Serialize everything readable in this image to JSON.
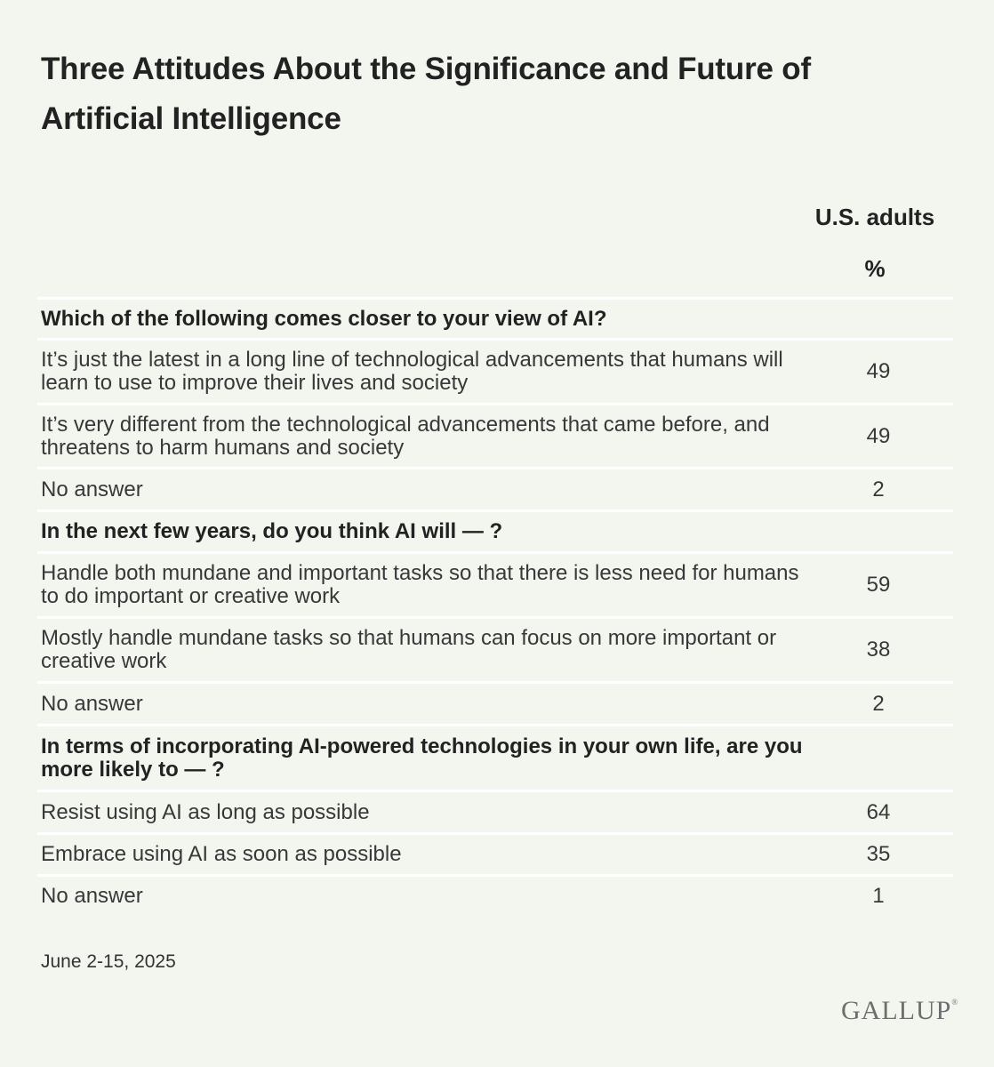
{
  "chart_data": {
    "type": "table",
    "title": "Three Attitudes About the Significance and Future of Artificial Intelligence",
    "column_group": "U.S. adults",
    "column_unit": "%",
    "sections": [
      {
        "question": "Which of the following comes closer to your view of AI?",
        "rows": [
          {
            "label": "It’s just the latest in a long line of technological advancements that humans will learn to use to improve their lives and society",
            "value": 49
          },
          {
            "label": "It’s very different from the technological advancements that came before, and threatens to harm humans and society",
            "value": 49
          },
          {
            "label": "No answer",
            "value": 2
          }
        ]
      },
      {
        "question": "In the next few years, do you think AI will — ?",
        "rows": [
          {
            "label": "Handle both mundane and important tasks so that there is less need for humans to do important or creative work",
            "value": 59
          },
          {
            "label": "Mostly handle mundane tasks so that humans can focus on more important or creative work",
            "value": 38
          },
          {
            "label": "No answer",
            "value": 2
          }
        ]
      },
      {
        "question": "In terms of incorporating AI-powered technologies in your own life, are you more likely to — ?",
        "rows": [
          {
            "label": "Resist using AI as long as possible",
            "value": 64
          },
          {
            "label": "Embrace using AI as soon as possible",
            "value": 35
          },
          {
            "label": "No answer",
            "value": 1
          }
        ]
      }
    ]
  },
  "footer": {
    "date": "June 2-15, 2025",
    "logo_text": "GALLUP",
    "logo_mark": "®"
  },
  "colors": {
    "background": "#f2f6ef",
    "divider": "#ffffff",
    "text": "#222222"
  }
}
